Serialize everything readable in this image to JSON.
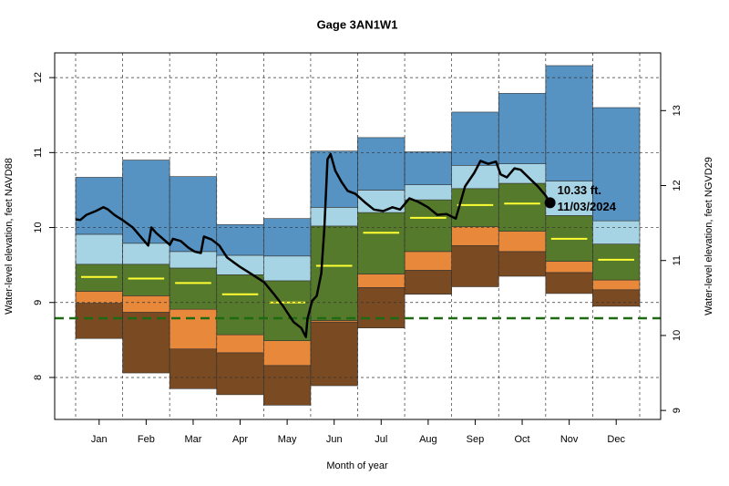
{
  "chart_data": {
    "type": "percentile-bands",
    "title": "Gage 3AN1W1",
    "x_label": "Month of year",
    "y_label": "Water-level elevation, feet NAVD88",
    "y2_label": "Water-level elevation, feet NGVD29",
    "categories": [
      "Jan",
      "Feb",
      "Mar",
      "Apr",
      "May",
      "Jun",
      "Jul",
      "Aug",
      "Sep",
      "Oct",
      "Nov",
      "Dec"
    ],
    "ylim": [
      7.44,
      12.33
    ],
    "yticks": [
      8,
      9,
      10,
      11,
      12
    ],
    "y2lim": [
      8.88,
      13.77
    ],
    "y2ticks": [
      9,
      10,
      11,
      12,
      13
    ],
    "grid": true,
    "levels": [
      [
        8.52,
        8.06,
        7.85,
        7.77,
        7.63,
        7.89,
        8.66,
        9.11,
        9.21,
        9.35,
        9.12,
        8.95
      ],
      [
        8.99,
        8.87,
        8.38,
        8.33,
        8.16,
        8.74,
        9.2,
        9.43,
        9.76,
        9.68,
        9.4,
        9.17
      ],
      [
        9.15,
        9.09,
        8.91,
        8.57,
        8.49,
        8.76,
        9.38,
        9.68,
        10.01,
        9.95,
        9.55,
        9.3
      ],
      [
        9.51,
        9.51,
        9.46,
        9.37,
        9.29,
        10.02,
        10.2,
        10.37,
        10.52,
        10.59,
        10.16,
        9.78
      ],
      [
        9.91,
        9.79,
        9.68,
        9.63,
        9.62,
        10.27,
        10.5,
        10.57,
        10.83,
        10.85,
        10.62,
        10.09
      ],
      [
        10.67,
        10.9,
        10.68,
        10.04,
        10.12,
        11.02,
        11.2,
        11.01,
        11.54,
        11.79,
        12.16,
        11.6
      ]
    ],
    "band_colors": [
      "#7a4a22",
      "#e8883a",
      "#567a2b",
      "#a7d4e4",
      "#5693c3"
    ],
    "median": {
      "color": "#ffff33",
      "values": [
        9.34,
        9.32,
        9.26,
        9.11,
        9.0,
        9.49,
        9.93,
        10.13,
        10.3,
        10.32,
        9.85,
        9.57
      ]
    },
    "reference_line": {
      "value": 8.79,
      "color": "#1e6b14"
    },
    "line": {
      "color": "#000000",
      "x": [
        0,
        3,
        7,
        13,
        18,
        21,
        25,
        31,
        37,
        42,
        47,
        49,
        52,
        57,
        61,
        63,
        68,
        73,
        77,
        81,
        83,
        88,
        93,
        98,
        106,
        113,
        122,
        128,
        134,
        141,
        146,
        149,
        150,
        153,
        156,
        159,
        161,
        163,
        165,
        168,
        172,
        176,
        181,
        187,
        193,
        199,
        205,
        210,
        216,
        222,
        228,
        234,
        240,
        246,
        252,
        258,
        262,
        267,
        272,
        275,
        279,
        284,
        288,
        293,
        299,
        304,
        307
      ],
      "values": [
        10.11,
        10.1,
        10.17,
        10.22,
        10.27,
        10.24,
        10.17,
        10.09,
        10.0,
        9.88,
        9.76,
        10.0,
        9.93,
        9.84,
        9.77,
        9.85,
        9.82,
        9.73,
        9.68,
        9.66,
        9.88,
        9.84,
        9.76,
        9.6,
        9.48,
        9.39,
        9.27,
        9.12,
        8.96,
        8.74,
        8.66,
        8.54,
        8.78,
        9.02,
        9.09,
        9.39,
        10.0,
        10.91,
        10.98,
        10.76,
        10.61,
        10.49,
        10.45,
        10.34,
        10.24,
        10.22,
        10.27,
        10.24,
        10.39,
        10.34,
        10.27,
        10.17,
        10.18,
        10.12,
        10.55,
        10.73,
        10.89,
        10.85,
        10.88,
        10.71,
        10.67,
        10.79,
        10.77,
        10.67,
        10.55,
        10.43,
        10.33
      ]
    },
    "point": {
      "x": 307,
      "value": 10.33,
      "label": "10.33 ft.",
      "date": "11/03/2024"
    }
  }
}
